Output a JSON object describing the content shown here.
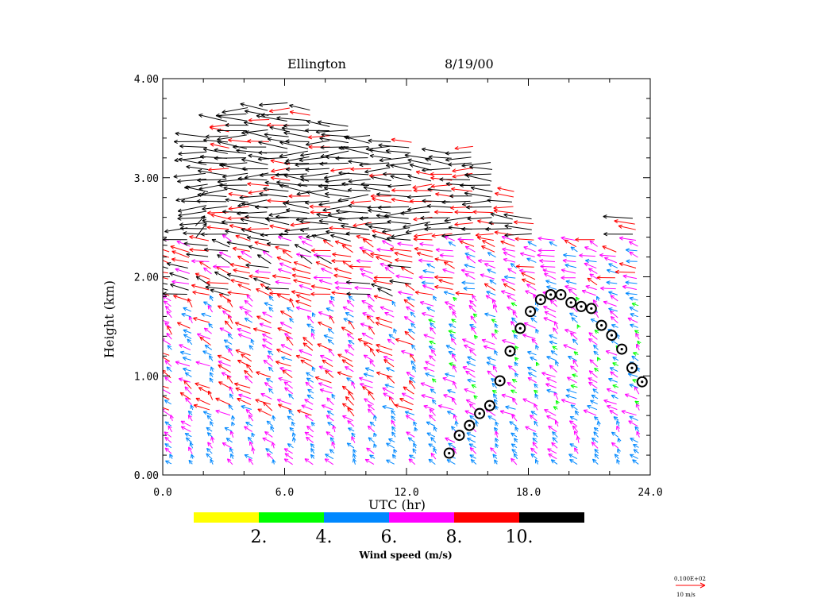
{
  "chart_data": {
    "type": "wind-profiler-barbs",
    "title_site": "Ellington",
    "title_date": "8/19/00",
    "xlabel": "UTC (hr)",
    "ylabel": "Height (km)",
    "xlim": [
      0,
      24
    ],
    "ylim": [
      0,
      4
    ],
    "xticks": [
      "0.0",
      "6.0",
      "12.0",
      "18.0",
      "24.0"
    ],
    "yticks": [
      "0.00",
      "1.00",
      "2.00",
      "3.00",
      "4.00"
    ],
    "colorbar": {
      "label": "Wind speed (m/s)",
      "colors": [
        "#ffff00",
        "#00ff00",
        "#0088ff",
        "#ff00ff",
        "#ff0000",
        "#000000"
      ],
      "tick_labels": [
        "2.",
        "4.",
        "6.",
        "8.",
        "10."
      ]
    },
    "reference_vector": {
      "header": "0.100E+02",
      "label": "10 m/s",
      "color": "#ff0000"
    },
    "profile_times": [
      0.5,
      1.5,
      2.5,
      3.5,
      4.5,
      5.5,
      6.5,
      7.5,
      8.5,
      9.5,
      10.5,
      11.5,
      12.5,
      13.5,
      14.5,
      15.5,
      16.5,
      17.5,
      18.5,
      19.5,
      20.5,
      21.5,
      22.5,
      23.5
    ],
    "profile_tops_km": [
      2.4,
      2.55,
      3.45,
      3.6,
      3.7,
      3.75,
      3.8,
      3.7,
      3.55,
      3.55,
      3.45,
      3.4,
      3.4,
      3.25,
      3.3,
      3.35,
      3.2,
      2.9,
      2.6,
      2.4,
      2.4,
      2.4,
      2.3,
      2.6
    ],
    "mixing_height": {
      "times": [
        14.1,
        14.6,
        15.1,
        15.6,
        16.1,
        16.6,
        17.1,
        17.6,
        18.1,
        18.6,
        19.1,
        19.6,
        20.1,
        20.6,
        21.1,
        21.6,
        22.1,
        22.6,
        23.1,
        23.6
      ],
      "heights_km": [
        0.22,
        0.4,
        0.5,
        0.62,
        0.7,
        0.95,
        1.25,
        1.48,
        1.65,
        1.77,
        1.82,
        1.82,
        1.74,
        1.7,
        1.68,
        1.51,
        1.41,
        1.27,
        1.08,
        0.94
      ]
    }
  }
}
